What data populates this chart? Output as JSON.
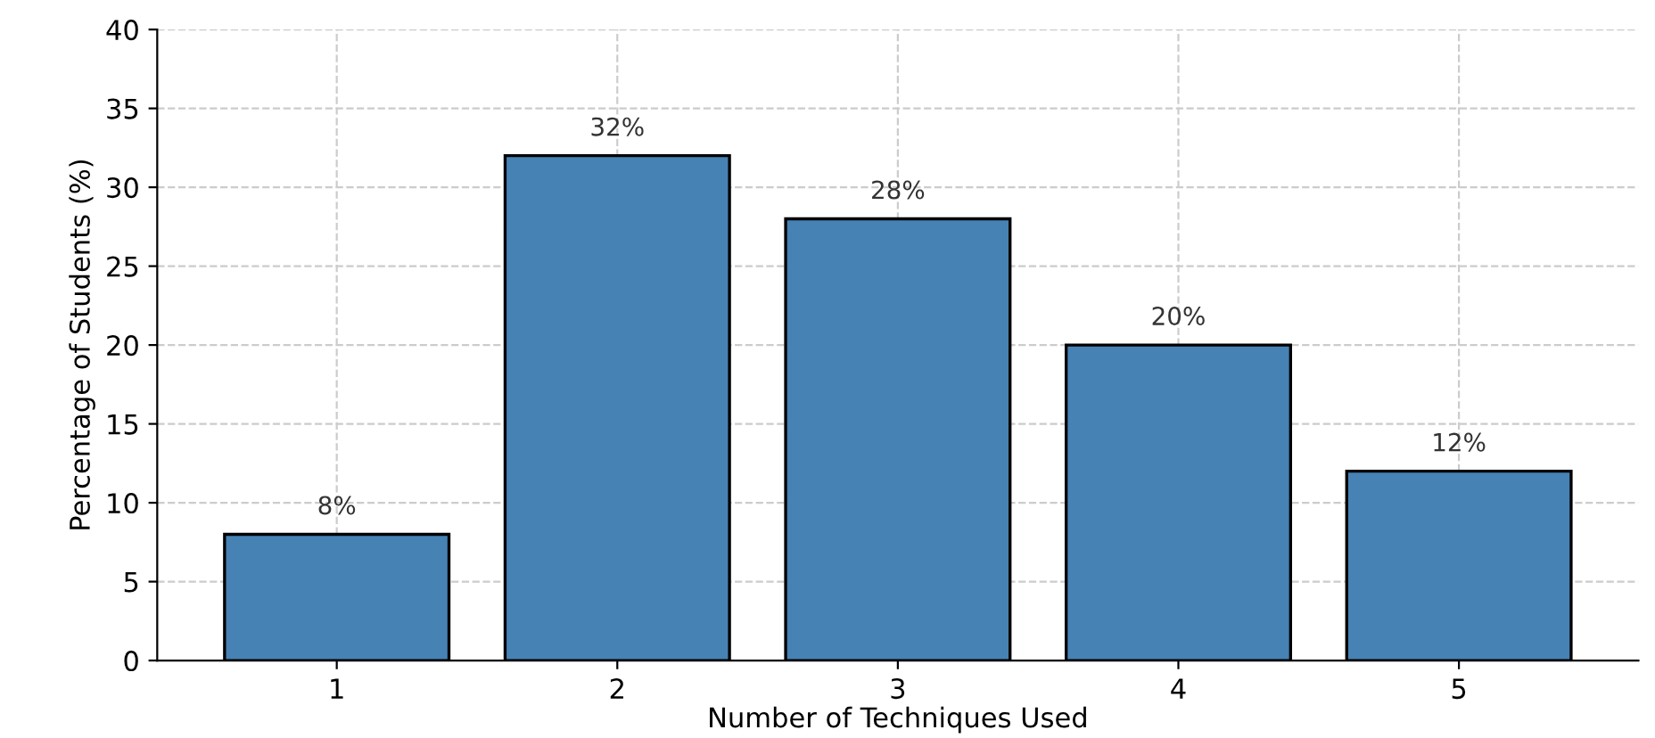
{
  "chart_data": {
    "type": "bar",
    "xlabel": "Number of Techniques Used",
    "ylabel": "Percentage of Students (%)",
    "categories": [
      "1",
      "2",
      "3",
      "4",
      "5"
    ],
    "values": [
      8,
      32,
      28,
      20,
      12
    ],
    "value_labels": [
      "8%",
      "32%",
      "28%",
      "20%",
      "12%"
    ],
    "color": "#4682b4",
    "ylim": [
      0,
      40
    ],
    "yticks": [
      0,
      5,
      10,
      15,
      20,
      25,
      30,
      35,
      40
    ],
    "grid": true
  }
}
